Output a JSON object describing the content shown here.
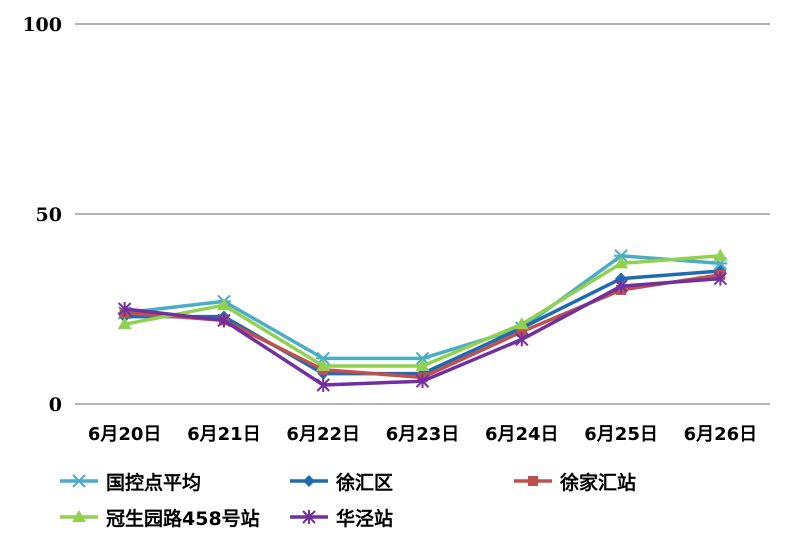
{
  "chart_data": {
    "type": "line",
    "categories": [
      "6月20日",
      "6月21日",
      "6月22日",
      "6月23日",
      "6月24日",
      "6月25日",
      "6月26日"
    ],
    "y_ticks": [
      "0",
      "50",
      "100"
    ],
    "ylim": [
      0,
      100
    ],
    "grid": true,
    "legend_position": "bottom",
    "series": [
      {
        "name": "国控点平均",
        "color": "#4BACC6",
        "marker": "asterisk",
        "values": [
          24,
          27,
          12,
          12,
          20,
          39,
          37
        ]
      },
      {
        "name": "徐汇区",
        "color": "#1F6BB1",
        "marker": "diamond",
        "values": [
          23,
          23,
          8,
          8,
          20,
          33,
          35
        ]
      },
      {
        "name": "徐家汇站",
        "color": "#C0504D",
        "marker": "square",
        "values": [
          24,
          22,
          9,
          7,
          19,
          30,
          34
        ]
      },
      {
        "name": "冠生园路458号站",
        "color": "#92D050",
        "marker": "triangle",
        "values": [
          21,
          26,
          10,
          10,
          21,
          37,
          39
        ]
      },
      {
        "name": "华泾站",
        "color": "#7030A0",
        "marker": "star",
        "values": [
          25,
          22,
          5,
          6,
          17,
          31,
          33
        ]
      }
    ]
  }
}
